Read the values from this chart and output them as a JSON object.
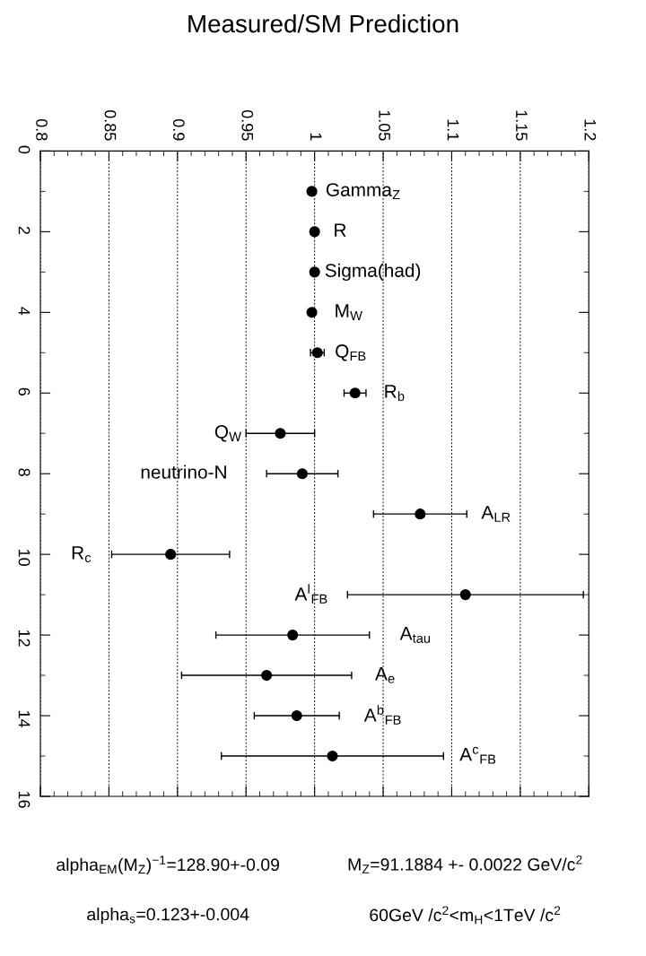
{
  "chart_data": {
    "type": "scatter",
    "title": "Measured/SM Prediction",
    "x": [
      0.998,
      1.0,
      1.0,
      0.998,
      1.002,
      1.0295,
      0.975,
      0.991,
      1.077,
      0.895,
      1.11,
      0.984,
      0.965,
      0.987,
      1.013
    ],
    "series": [
      {
        "color": "#000000",
        "values": [
          1,
          2,
          3,
          4,
          5,
          6,
          7,
          8,
          9,
          10,
          11,
          12,
          13,
          14,
          15
        ],
        "xerrors": [
          null,
          null,
          null,
          null,
          0.005,
          0.008,
          0.025,
          0.026,
          0.034,
          0.043,
          0.086,
          0.056,
          0.062,
          0.031,
          0.081
        ]
      }
    ],
    "marker": "circle",
    "xlim": [
      0.8,
      1.2
    ],
    "xticks": [
      0.8,
      0.85,
      0.9,
      0.95,
      1,
      1.05,
      1.1,
      1.15,
      1.2
    ],
    "ylim": [
      16,
      0
    ],
    "yticks": [
      0,
      2,
      4,
      6,
      8,
      10,
      12,
      14,
      16
    ],
    "grid": "x",
    "legend": false,
    "annotations": [
      "Gamma$_{Z}$",
      "R",
      "Sigma(had)",
      "M$_{W}$",
      "Q$_{FB}$",
      "R$_{b}$",
      "Q$_{W}$",
      "neutrino-N",
      "A$_{LR}$",
      "R$_{c}$",
      "A$^{l}$$_{FB}$",
      "A$_{tau}$",
      "A$_{e}$",
      "A$^{b}$$_{FB}$",
      "A$^{c}$$_{FB}$",
      "alpha$_{EM}$(M$_{Z}$)$^{−1}$=128.90+-0.09",
      "M$_{Z}$=91.1884 +- 0.0022 GeV/c$^{2}$",
      "alpha$_{s}$=0.123+-0.004",
      "60GeV /c$^{2}$<m$_{H}$<1TeV /c$^{2}$"
    ]
  }
}
